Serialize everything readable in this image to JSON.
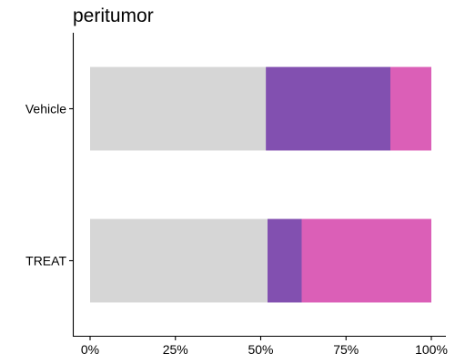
{
  "chart_data": {
    "type": "bar",
    "orientation": "horizontal",
    "stacked": true,
    "title": "peritumor",
    "xlabel": "",
    "ylabel": "",
    "categories": [
      "Vehicle",
      "TREAT"
    ],
    "xlim": [
      0,
      1
    ],
    "x_ticks": [
      {
        "value": 0,
        "label": "0%"
      },
      {
        "value": 0.25,
        "label": "25%"
      },
      {
        "value": 0.5,
        "label": "50%"
      },
      {
        "value": 0.75,
        "label": "75%"
      },
      {
        "value": 1,
        "label": "100%"
      }
    ],
    "series": [
      {
        "color": "#d6d6d6",
        "values": [
          0.515,
          0.52
        ]
      },
      {
        "color": "#8250b0",
        "values": [
          0.365,
          0.1
        ]
      },
      {
        "color": "#db5fb7",
        "values": [
          0.12,
          0.38
        ]
      }
    ],
    "grid": false,
    "legend": "none"
  }
}
